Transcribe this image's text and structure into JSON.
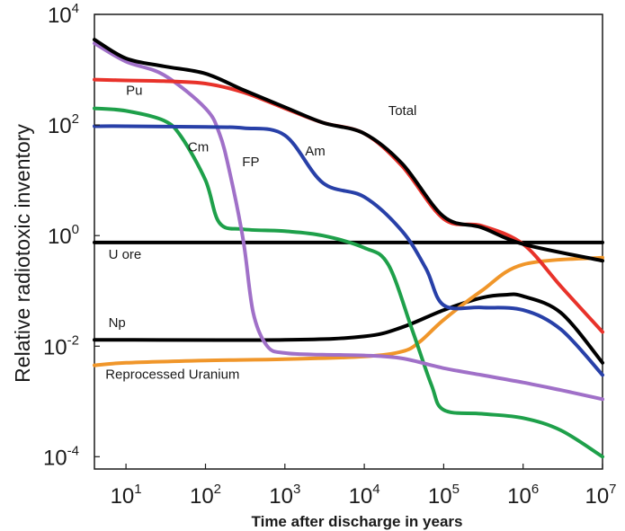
{
  "chart_data": {
    "type": "line",
    "title": "",
    "xlabel": "Time after discharge in years",
    "ylabel": "Relative radiotoxic inventory",
    "x_scale": "log",
    "y_scale": "log",
    "xlim": [
      4,
      10000000
    ],
    "ylim": [
      6e-05,
      10000
    ],
    "grid": false,
    "x_ticks": [
      {
        "value": 10,
        "base": "10",
        "exp": "1"
      },
      {
        "value": 100,
        "base": "10",
        "exp": "2"
      },
      {
        "value": 1000,
        "base": "10",
        "exp": "3"
      },
      {
        "value": 10000,
        "base": "10",
        "exp": "4"
      },
      {
        "value": 100000,
        "base": "10",
        "exp": "5"
      },
      {
        "value": 1000000,
        "base": "10",
        "exp": "6"
      },
      {
        "value": 10000000,
        "base": "10",
        "exp": "7"
      }
    ],
    "y_ticks": [
      {
        "value": 10000,
        "base": "10",
        "exp": "4"
      },
      {
        "value": 100,
        "base": "10",
        "exp": "2"
      },
      {
        "value": 1,
        "base": "10",
        "exp": "0"
      },
      {
        "value": 0.01,
        "base": "10",
        "exp": "-2"
      },
      {
        "value": 0.0001,
        "base": "10",
        "exp": "-4"
      }
    ],
    "series": [
      {
        "name": "Total",
        "color": "#000000",
        "label_at": [
          20000,
          150
        ],
        "points": [
          [
            4,
            3500
          ],
          [
            10,
            1600
          ],
          [
            30,
            1150
          ],
          [
            100,
            850
          ],
          [
            300,
            430
          ],
          [
            1000,
            210
          ],
          [
            3000,
            110
          ],
          [
            10000,
            70
          ],
          [
            30000,
            20
          ],
          [
            100000,
            2.2
          ],
          [
            300000,
            1.4
          ],
          [
            1000000,
            0.7
          ],
          [
            10000000,
            0.35
          ]
        ]
      },
      {
        "name": "Pu",
        "color": "#e8322a",
        "label_at": [
          10,
          350
        ],
        "points": [
          [
            4,
            660
          ],
          [
            10,
            640
          ],
          [
            30,
            620
          ],
          [
            100,
            560
          ],
          [
            300,
            390
          ],
          [
            1000,
            200
          ],
          [
            3000,
            110
          ],
          [
            10000,
            70
          ],
          [
            30000,
            18
          ],
          [
            100000,
            2
          ],
          [
            300000,
            1.5
          ],
          [
            1000000,
            0.7
          ],
          [
            3000000,
            0.12
          ],
          [
            10000000,
            0.018
          ]
        ]
      },
      {
        "name": "Am",
        "color": "#2840a8",
        "label_at": [
          1800,
          28
        ],
        "points": [
          [
            4,
            95
          ],
          [
            10,
            95
          ],
          [
            100,
            92
          ],
          [
            300,
            88
          ],
          [
            1000,
            65
          ],
          [
            3000,
            9
          ],
          [
            10000,
            5
          ],
          [
            30000,
            1.2
          ],
          [
            60000,
            0.25
          ],
          [
            100000,
            0.055
          ],
          [
            300000,
            0.05
          ],
          [
            1000000,
            0.045
          ],
          [
            3000000,
            0.02
          ],
          [
            10000000,
            0.003
          ]
        ]
      },
      {
        "name": "Cm",
        "color": "#1ea04a",
        "label_at": [
          60,
          33
        ],
        "points": [
          [
            4,
            200
          ],
          [
            10,
            180
          ],
          [
            30,
            120
          ],
          [
            50,
            60
          ],
          [
            100,
            10
          ],
          [
            150,
            1.7
          ],
          [
            300,
            1.3
          ],
          [
            1000,
            1.2
          ],
          [
            3000,
            1
          ],
          [
            10000,
            0.6
          ],
          [
            20000,
            0.3
          ],
          [
            40000,
            0.02
          ],
          [
            70000,
            0.002
          ],
          [
            100000,
            0.0007
          ],
          [
            300000,
            0.0006
          ],
          [
            1000000,
            0.0005
          ],
          [
            3000000,
            0.0003
          ],
          [
            10000000,
            0.0001
          ]
        ]
      },
      {
        "name": "FP",
        "color": "#a070c8",
        "label_at": [
          290,
          18
        ],
        "points": [
          [
            4,
            3000
          ],
          [
            10,
            1400
          ],
          [
            30,
            800
          ],
          [
            100,
            200
          ],
          [
            150,
            70
          ],
          [
            200,
            15
          ],
          [
            300,
            0.8
          ],
          [
            400,
            0.04
          ],
          [
            600,
            0.01
          ],
          [
            1000,
            0.0075
          ],
          [
            3000,
            0.007
          ],
          [
            10000,
            0.0068
          ],
          [
            30000,
            0.006
          ],
          [
            100000,
            0.004
          ],
          [
            300000,
            0.003
          ],
          [
            1000000,
            0.0022
          ],
          [
            3000000,
            0.0016
          ],
          [
            10000000,
            0.0011
          ]
        ]
      },
      {
        "name": "U ore",
        "color": "#000000",
        "label_at": [
          6,
          0.38
        ],
        "points": [
          [
            4,
            0.75
          ],
          [
            10000000,
            0.75
          ]
        ]
      },
      {
        "name": "Np",
        "color": "#000000",
        "label_at": [
          6,
          0.022
        ],
        "points": [
          [
            4,
            0.013
          ],
          [
            1000,
            0.013
          ],
          [
            10000,
            0.015
          ],
          [
            30000,
            0.022
          ],
          [
            100000,
            0.045
          ],
          [
            300000,
            0.075
          ],
          [
            600000,
            0.085
          ],
          [
            1000000,
            0.08
          ],
          [
            3000000,
            0.04
          ],
          [
            10000000,
            0.005
          ]
        ]
      },
      {
        "name": "Reprocessed Uranium",
        "color": "#f0962a",
        "label_at": [
          5.5,
          0.0026
        ],
        "points": [
          [
            4,
            0.0045
          ],
          [
            10,
            0.005
          ],
          [
            100,
            0.0055
          ],
          [
            1000,
            0.0058
          ],
          [
            10000,
            0.0065
          ],
          [
            30000,
            0.008
          ],
          [
            50000,
            0.012
          ],
          [
            100000,
            0.03
          ],
          [
            300000,
            0.1
          ],
          [
            1000000,
            0.3
          ],
          [
            10000000,
            0.4
          ]
        ]
      }
    ]
  }
}
